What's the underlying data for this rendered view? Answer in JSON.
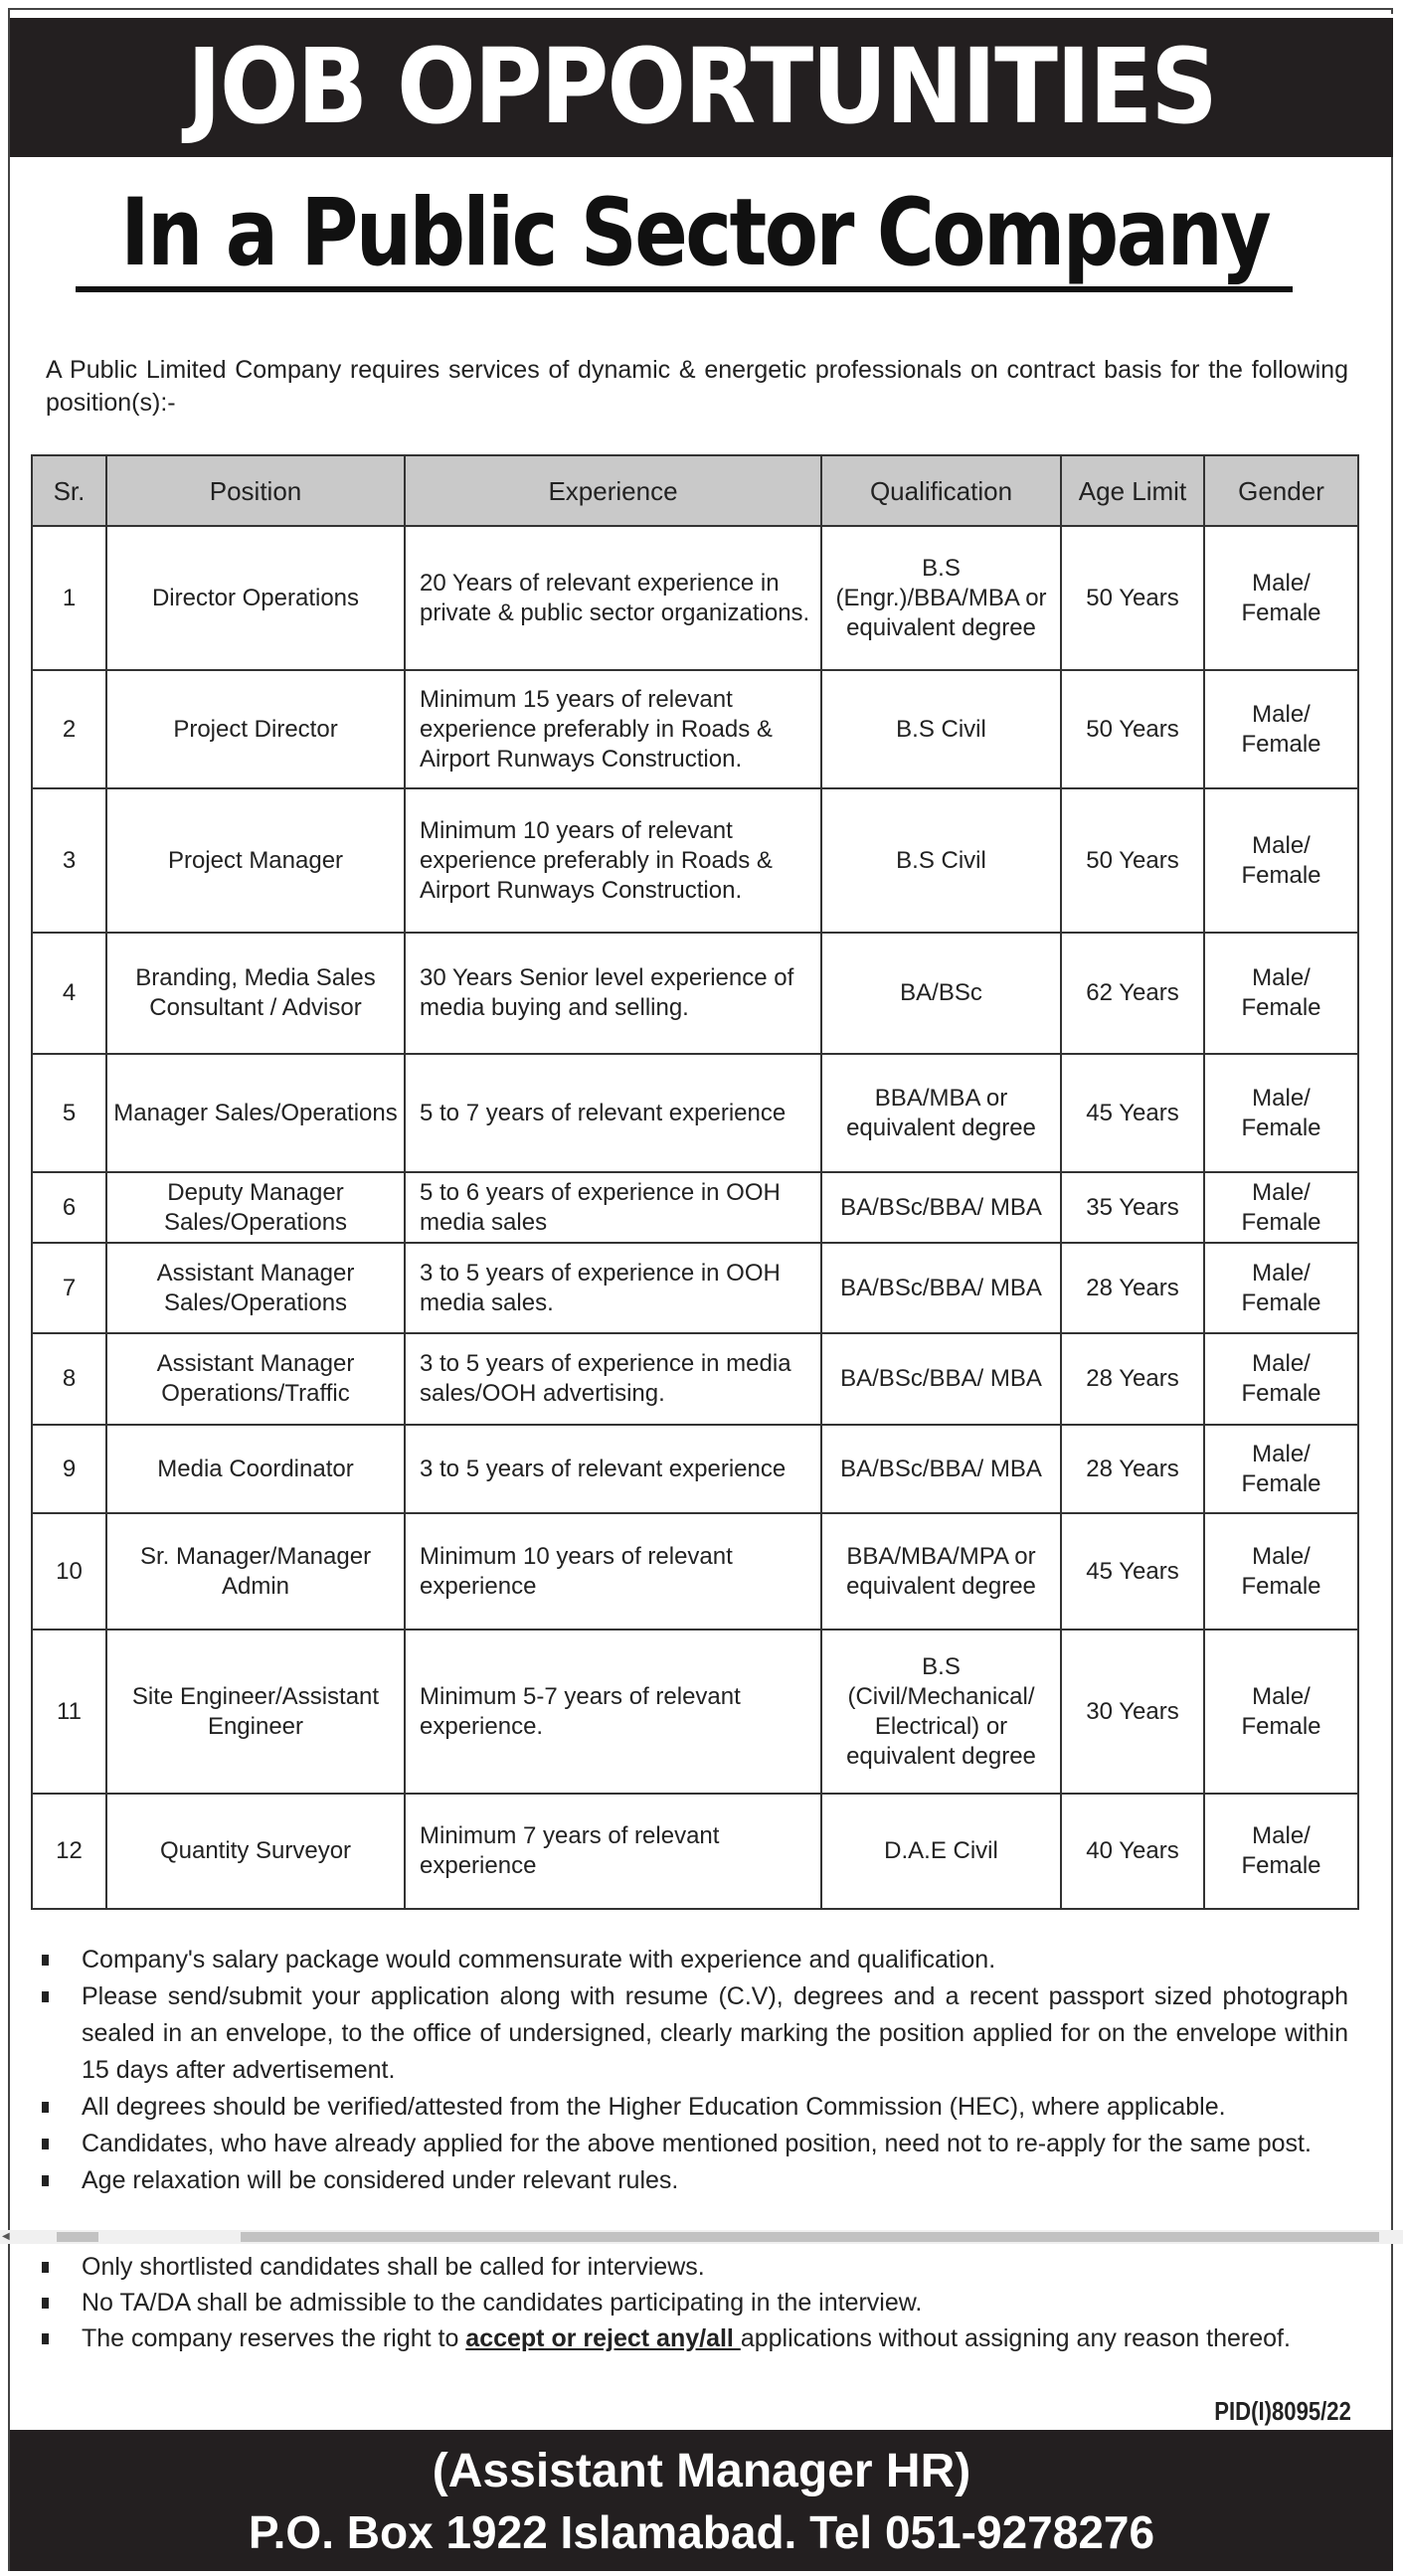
{
  "header": {
    "title": "JOB OPPORTUNITIES",
    "subtitle": "In a Public Sector Company"
  },
  "intro": "A Public Limited Company requires services of dynamic & energetic professionals on contract basis for the following position(s):-",
  "table": {
    "columns": [
      "Sr.",
      "Position",
      "Experience",
      "Qualification",
      "Age Limit",
      "Gender"
    ],
    "rows": [
      [
        "1",
        "Director Operations",
        "20 Years of relevant experience in private & public sector organizations.",
        "B.S (Engr.)/BBA/MBA or equivalent degree",
        "50 Years",
        "Male/ Female"
      ],
      [
        "2",
        "Project Director",
        "Minimum 15 years of relevant experience preferably in Roads & Airport Runways Construction.",
        "B.S Civil",
        "50 Years",
        "Male/ Female"
      ],
      [
        "3",
        "Project Manager",
        "Minimum 10 years of relevant experience preferably in Roads & Airport Runways Construction.",
        "B.S Civil",
        "50 Years",
        "Male/ Female"
      ],
      [
        "4",
        "Branding, Media Sales Consultant / Advisor",
        "30 Years Senior level experience of media buying and selling.",
        "BA/BSc",
        "62 Years",
        "Male/ Female"
      ],
      [
        "5",
        "Manager Sales/Operations",
        "5 to 7 years of relevant experience",
        "BBA/MBA or equivalent degree",
        "45 Years",
        "Male/ Female"
      ],
      [
        "6",
        "Deputy Manager Sales/Operations",
        "5 to 6 years of experience in OOH media sales",
        "BA/BSc/BBA/ MBA",
        "35 Years",
        "Male/ Female"
      ],
      [
        "7",
        "Assistant Manager Sales/Operations",
        "3 to 5 years of experience in OOH media sales.",
        "BA/BSc/BBA/ MBA",
        "28 Years",
        "Male/ Female"
      ],
      [
        "8",
        "Assistant Manager Operations/Traffic",
        "3 to 5 years of experience in media sales/OOH advertising.",
        "BA/BSc/BBA/ MBA",
        "28 Years",
        "Male/ Female"
      ],
      [
        "9",
        "Media Coordinator",
        "3 to 5 years of relevant experience",
        "BA/BSc/BBA/ MBA",
        "28 Years",
        "Male/ Female"
      ],
      [
        "10",
        "Sr. Manager/Manager Admin",
        "Minimum 10 years of relevant experience",
        "BBA/MBA/MPA or equivalent degree",
        "45 Years",
        "Male/ Female"
      ],
      [
        "11",
        "Site Engineer/Assistant Engineer",
        "Minimum 5-7 years of relevant experience.",
        "B.S (Civil/Mechanical/ Electrical) or equivalent degree",
        "30 Years",
        "Male/ Female"
      ],
      [
        "12",
        "Quantity Surveyor",
        "Minimum 7 years of relevant experience",
        "D.A.E Civil",
        "40 Years",
        "Male/ Female"
      ]
    ]
  },
  "notes_a": [
    "Company's salary package would commensurate with experience and qualification.",
    "Please send/submit your application along with resume (C.V), degrees and a recent passport sized photograph sealed in an envelope, to the office of undersigned, clearly marking the position applied for on the envelope within 15 days after advertisement.",
    "All degrees should be verified/attested from the Higher Education Commission (HEC), where applicable.",
    "Candidates, who have already applied for the above mentioned position, need not to re-apply for the same post.",
    "Age relaxation will be considered under relevant rules."
  ],
  "notes_b": [
    "Only shortlisted candidates shall be called for interviews.",
    "No TA/DA shall be admissible to the candidates participating in the interview."
  ],
  "last_note": {
    "before": "The company reserves the right to ",
    "emph": "accept or reject any/all ",
    "after": "applications without assigning any reason thereof."
  },
  "pid": "PID(I)8095/22",
  "footer": {
    "line1": "(Assistant Manager HR)",
    "line2": "P.O. Box 1922 Islamabad. Tel 051-9278276"
  }
}
